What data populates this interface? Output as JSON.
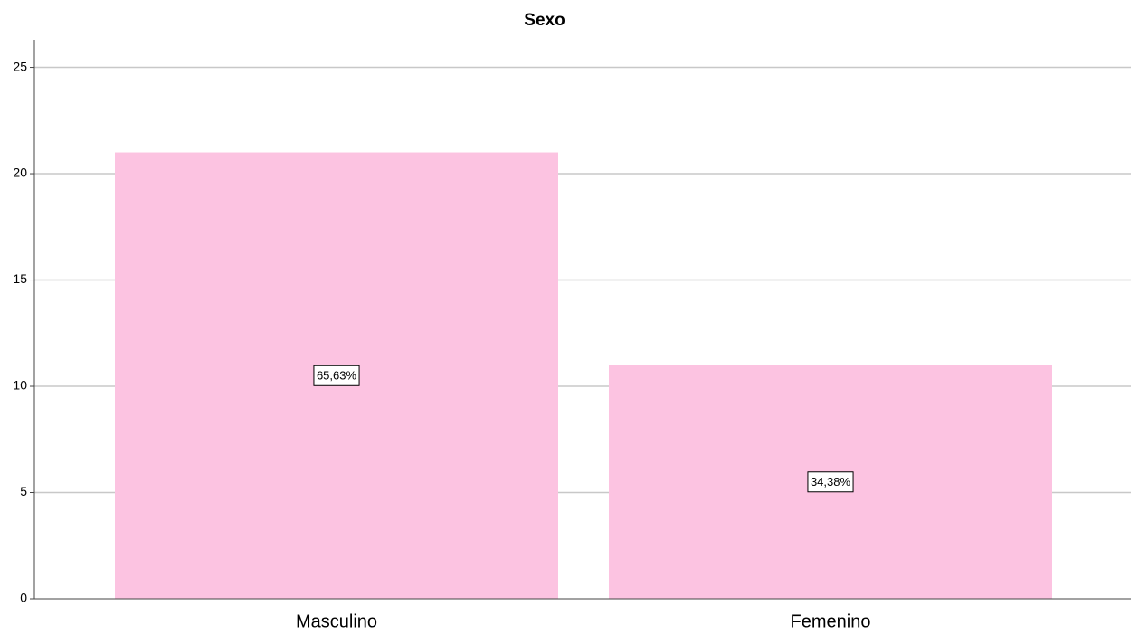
{
  "chart_data": {
    "type": "bar",
    "title": "Sexo",
    "categories": [
      "Masculino",
      "Femenino"
    ],
    "values": [
      21,
      11
    ],
    "annotations": [
      "65,63%",
      "34,38%"
    ],
    "color": "#fcc3e1",
    "ylim": [
      0,
      26.3
    ],
    "yticks": [
      0,
      5,
      10,
      15,
      20,
      25
    ],
    "grid": true
  }
}
